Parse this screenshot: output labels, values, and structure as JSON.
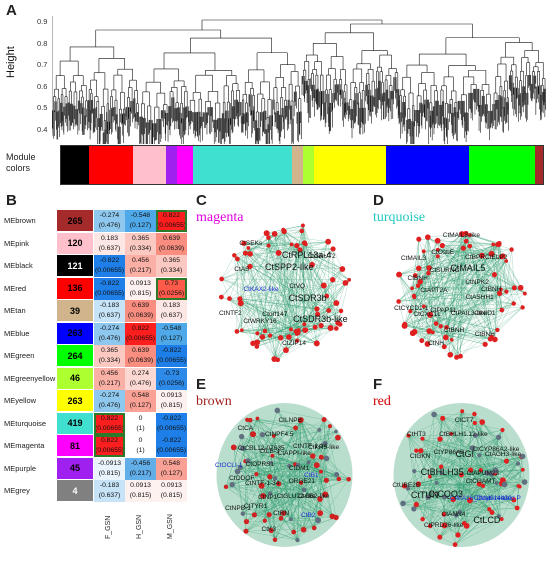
{
  "panel_labels": {
    "a": "A",
    "b": "B",
    "c": "C",
    "d": "D",
    "e": "E",
    "f": "F"
  },
  "panelA": {
    "y_axis_label": "Height",
    "y_ticks": [
      "0.9",
      "0.8",
      "0.7",
      "0.6",
      "0.5",
      "0.4"
    ],
    "module_label": "Module\ncolors",
    "module_colors": [
      "#000000",
      "#ff0000",
      "#ffc0cb",
      "#a020f0",
      "#ff00ff",
      "#40e0d0",
      "#d2b48c",
      "#adff2f",
      "#ffff00",
      "#0000ff",
      "#00ff00",
      "#a52a2a"
    ]
  },
  "panelB": {
    "columns": [
      "F_GSN",
      "H_GSN",
      "M_GSN"
    ],
    "rows": [
      {
        "name": "MEbrown",
        "count": "265",
        "color": "#a52a2a",
        "textcolor": "#000",
        "cells": [
          [
            "-0.274",
            "(0.476)"
          ],
          [
            "-0.548",
            "(0.127)"
          ],
          [
            "0.822",
            "(0.00655)"
          ]
        ],
        "fill": [
          "#8fc8ef",
          "#4fa8e8",
          "#ff1e1e"
        ]
      },
      {
        "name": "MEpink",
        "count": "120",
        "color": "#ffc0cb",
        "textcolor": "#000",
        "cells": [
          [
            "0.183",
            "(0.637)"
          ],
          [
            "0.365",
            "(0.334)"
          ],
          [
            "0.639",
            "(0.0639)"
          ]
        ],
        "fill": [
          "#fde7e4",
          "#fbc9c2",
          "#f88d80"
        ]
      },
      {
        "name": "MEblack",
        "count": "121",
        "color": "#000000",
        "textcolor": "#fff",
        "cells": [
          [
            "-0.822",
            "(0.00655)"
          ],
          [
            "0.456",
            "(0.217)"
          ],
          [
            "0.365",
            "(0.334)"
          ]
        ],
        "fill": [
          "#1f7fe8",
          "#fbb0a6",
          "#fbc9c2"
        ]
      },
      {
        "name": "MEred",
        "count": "136",
        "color": "#ff0000",
        "textcolor": "#000",
        "cells": [
          [
            "-0.822",
            "(0.00655)"
          ],
          [
            "0.0913",
            "(0.815)"
          ],
          [
            "0.73",
            "(0.0256)"
          ]
        ],
        "fill": [
          "#1f7fe8",
          "#fef2f0",
          "#ff5a4a"
        ]
      },
      {
        "name": "MEtan",
        "count": "39",
        "color": "#d2b48c",
        "textcolor": "#000",
        "cells": [
          [
            "-0.183",
            "(0.637)"
          ],
          [
            "0.639",
            "(0.0639)"
          ],
          [
            "0.183",
            "(0.637)"
          ]
        ],
        "fill": [
          "#c6e3f7",
          "#f88d80",
          "#fde7e4"
        ]
      },
      {
        "name": "MEblue",
        "count": "263",
        "color": "#0000ff",
        "textcolor": "#000",
        "cells": [
          [
            "-0.274",
            "(0.476)"
          ],
          [
            "0.822",
            "(0.00655)"
          ],
          [
            "-0.548",
            "(0.127)"
          ]
        ],
        "fill": [
          "#8fc8ef",
          "#ff1e1e",
          "#4fa8e8"
        ]
      },
      {
        "name": "MEgreen",
        "count": "264",
        "color": "#00ff00",
        "textcolor": "#000",
        "cells": [
          [
            "0.365",
            "(0.334)"
          ],
          [
            "0.639",
            "(0.0639)"
          ],
          [
            "-0.822",
            "(0.00655)"
          ]
        ],
        "fill": [
          "#fbc9c2",
          "#f88d80",
          "#1f7fe8"
        ]
      },
      {
        "name": "MEgreenyellow",
        "count": "46",
        "color": "#adff2f",
        "textcolor": "#000",
        "cells": [
          [
            "0.456",
            "(0.217)"
          ],
          [
            "0.274",
            "(0.476)"
          ],
          [
            "-0.73",
            "(0.0256)"
          ]
        ],
        "fill": [
          "#fbb0a6",
          "#fcd8d2",
          "#2e8ae9"
        ]
      },
      {
        "name": "MEyellow",
        "count": "263",
        "color": "#ffff00",
        "textcolor": "#000",
        "cells": [
          [
            "-0.274",
            "(0.476)"
          ],
          [
            "0.548",
            "(0.127)"
          ],
          [
            "0.0913",
            "(0.815)"
          ]
        ],
        "fill": [
          "#8fc8ef",
          "#f9a195",
          "#fef2f0"
        ]
      },
      {
        "name": "MEturquoise",
        "count": "419",
        "color": "#40e0d0",
        "textcolor": "#000",
        "cells": [
          [
            "0.822",
            "(0.00655)"
          ],
          [
            "0",
            "(1)"
          ],
          [
            "-0.822",
            "(0.00655)"
          ]
        ],
        "fill": [
          "#ff1e1e",
          "#ffffff",
          "#1f7fe8"
        ]
      },
      {
        "name": "MEmagenta",
        "count": "81",
        "color": "#ff00ff",
        "textcolor": "#000",
        "cells": [
          [
            "0.822",
            "(0.00655)"
          ],
          [
            "0",
            "(1)"
          ],
          [
            "-0.822",
            "(0.00655)"
          ]
        ],
        "fill": [
          "#ff1e1e",
          "#ffffff",
          "#1f7fe8"
        ]
      },
      {
        "name": "MEpurple",
        "count": "45",
        "color": "#a020f0",
        "textcolor": "#000",
        "cells": [
          [
            "-0.0913",
            "(0.815)"
          ],
          [
            "-0.456",
            "(0.217)"
          ],
          [
            "0.548",
            "(0.127)"
          ]
        ],
        "fill": [
          "#e9f4fc",
          "#62aee9",
          "#f9a195"
        ]
      },
      {
        "name": "MEgrey",
        "count": "4",
        "color": "#808080",
        "textcolor": "#fff",
        "cells": [
          [
            "-0.183",
            "(0.637)"
          ],
          [
            "0.0913",
            "(0.815)"
          ],
          [
            "0.0913",
            "(0.815)"
          ]
        ],
        "fill": [
          "#c6e3f7",
          "#fef2f0",
          "#fef2f0"
        ]
      }
    ]
  },
  "panelC": {
    "title": "magenta",
    "title_color": "#e000e0",
    "genes": [
      {
        "t": "CtSDR3b",
        "c": "big"
      },
      {
        "t": "CtSDR3b-like",
        "c": "big"
      },
      {
        "t": "CtZIP14",
        "c": ""
      },
      {
        "t": "Ctorf147",
        "c": ""
      },
      {
        "t": "CtWRKY16",
        "c": ""
      },
      {
        "t": "CtNTF2",
        "c": ""
      },
      {
        "t": "CtKAX2-like",
        "c": "blue"
      },
      {
        "t": "CtAS",
        "c": ""
      },
      {
        "t": "CtSEKs",
        "c": ""
      },
      {
        "t": "CtSPP2-like",
        "c": "big"
      },
      {
        "t": "CtRPL13a-4",
        "c": "big"
      },
      {
        "t": "CtGAUT2",
        "c": ""
      },
      {
        "t": "CtVQ",
        "c": ""
      }
    ]
  },
  "panelD": {
    "title": "turquoise",
    "title_color": "#20c8c0",
    "genes": [
      {
        "t": "CtASHH1",
        "c": ""
      },
      {
        "t": "CtNID1",
        "c": ""
      },
      {
        "t": "CtBNH",
        "c": ""
      },
      {
        "t": "CtPAIL3-like",
        "c": ""
      },
      {
        "t": "CtBNH",
        "c": ""
      },
      {
        "t": "CtNH",
        "c": ""
      },
      {
        "t": "CtPAP11",
        "c": ""
      },
      {
        "t": "CtCXC1L",
        "c": ""
      },
      {
        "t": "CtCYCD1-1",
        "c": ""
      },
      {
        "t": "CtAPT2A",
        "c": ""
      },
      {
        "t": "CtBNH",
        "c": ""
      },
      {
        "t": "CtMAIL3",
        "c": ""
      },
      {
        "t": "CtSURNC",
        "c": ""
      },
      {
        "t": "CtOsbE",
        "c": ""
      },
      {
        "t": "CtMAIL3-like",
        "c": ""
      },
      {
        "t": "CtMAIL5",
        "c": "big"
      },
      {
        "t": "CtBPR",
        "c": ""
      },
      {
        "t": "CtELP2",
        "c": ""
      },
      {
        "t": "CtNPK2",
        "c": ""
      },
      {
        "t": "CtBNH",
        "c": ""
      }
    ]
  },
  "panelE": {
    "title": "brown",
    "title_color": "#a02020",
    "genes": [
      {
        "t": "ORGE21",
        "c": ""
      },
      {
        "t": "CtGB2-like",
        "c": ""
      },
      {
        "t": "CtB2",
        "c": "blue"
      },
      {
        "t": "CtGLU22-like",
        "c": ""
      },
      {
        "t": "CtRN",
        "c": ""
      },
      {
        "t": "CtK3",
        "c": ""
      },
      {
        "t": "CtNP1",
        "c": ""
      },
      {
        "t": "CtTYR1",
        "c": ""
      },
      {
        "t": "CtNPB-1",
        "c": ""
      },
      {
        "t": "CtNTF-1-34",
        "c": ""
      },
      {
        "t": "CtODOF",
        "c": ""
      },
      {
        "t": "CtOCLI-1",
        "c": "blue"
      },
      {
        "t": "CtOPRS1",
        "c": ""
      },
      {
        "t": "CtCBL12-07635",
        "c": ""
      },
      {
        "t": "CtCA",
        "c": ""
      },
      {
        "t": "CtLB-3",
        "c": ""
      },
      {
        "t": "CtNPF4.5",
        "c": ""
      },
      {
        "t": "CtLNPB",
        "c": ""
      },
      {
        "t": "CtAPPI-like",
        "c": ""
      },
      {
        "t": "CtNTF-1-34",
        "c": ""
      },
      {
        "t": "CtKR3-like",
        "c": ""
      },
      {
        "t": "CtDM1",
        "c": ""
      },
      {
        "t": "CtB1",
        "c": "blue"
      }
    ]
  },
  "panelF": {
    "title": "red",
    "title_color": "#d00000",
    "genes": [
      {
        "t": "CtCGAMT",
        "c": ""
      },
      {
        "t": "CtMyb-related P",
        "c": "blue"
      },
      {
        "t": "CtLCD",
        "c": "big"
      },
      {
        "t": "CtMA16_Dcal014430",
        "c": "blue"
      },
      {
        "t": "CtANN4",
        "c": ""
      },
      {
        "t": "CtPRD26-like",
        "c": ""
      },
      {
        "t": "CtCQQ3",
        "c": "big"
      },
      {
        "t": "CtTUN",
        "c": "big"
      },
      {
        "t": "CtUBE2B",
        "c": ""
      },
      {
        "t": "CtBHLH35",
        "c": "big"
      },
      {
        "t": "CtGKN",
        "c": ""
      },
      {
        "t": "CtHT3",
        "c": ""
      },
      {
        "t": "CtYP86A8",
        "c": ""
      },
      {
        "t": "CtBHLH1.12-like",
        "c": ""
      },
      {
        "t": "CtCT7",
        "c": ""
      },
      {
        "t": "CtGI",
        "c": "big"
      },
      {
        "t": "CtCYP86A2-like",
        "c": ""
      },
      {
        "t": "CtAGH3-like",
        "c": ""
      },
      {
        "t": "CtAPUM23",
        "c": ""
      }
    ]
  }
}
